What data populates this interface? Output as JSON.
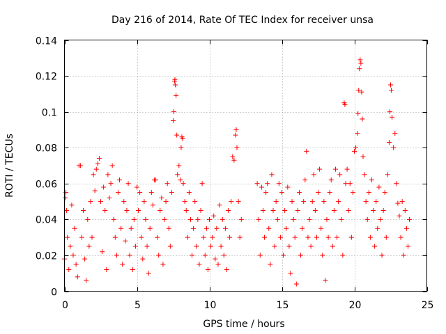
{
  "chart_data": {
    "type": "scatter",
    "title": "Day 216 of 2014, Rate Of TEC Index for receiver unsa",
    "xlabel": "GPS time / hours",
    "ylabel": "ROTI / TECUs",
    "xlim": [
      0,
      25
    ],
    "ylim": [
      0,
      0.14
    ],
    "xticks": [
      0,
      5,
      10,
      15,
      20,
      25
    ],
    "xtick_labels": [
      "0",
      "5",
      "10",
      "15",
      "20",
      "25"
    ],
    "yticks": [
      0,
      0.02,
      0.04,
      0.06,
      0.08,
      0.1,
      0.12,
      0.14
    ],
    "ytick_labels": [
      "0",
      "0.02",
      "0.04",
      "0.06",
      "0.08",
      "0.1",
      "0.12",
      "0.14"
    ],
    "grid": true,
    "marker": "+",
    "color": "#ff0000",
    "series": [
      {
        "name": "ROTI",
        "points": [
          [
            0.0,
            0.018
          ],
          [
            0.05,
            0.052
          ],
          [
            0.1,
            0.055
          ],
          [
            0.15,
            0.045
          ],
          [
            0.2,
            0.03
          ],
          [
            0.3,
            0.012
          ],
          [
            0.4,
            0.025
          ],
          [
            0.5,
            0.048
          ],
          [
            0.6,
            0.02
          ],
          [
            0.7,
            0.035
          ],
          [
            0.8,
            0.015
          ],
          [
            0.9,
            0.008
          ],
          [
            1.0,
            0.07
          ],
          [
            1.1,
            0.07
          ],
          [
            1.2,
            0.03
          ],
          [
            1.3,
            0.045
          ],
          [
            1.4,
            0.018
          ],
          [
            1.5,
            0.006
          ],
          [
            1.6,
            0.04
          ],
          [
            1.7,
            0.025
          ],
          [
            1.8,
            0.05
          ],
          [
            1.9,
            0.03
          ],
          [
            2.0,
            0.065
          ],
          [
            2.1,
            0.056
          ],
          [
            2.2,
            0.068
          ],
          [
            2.3,
            0.071
          ],
          [
            2.4,
            0.074
          ],
          [
            2.5,
            0.05
          ],
          [
            2.6,
            0.022
          ],
          [
            2.7,
            0.058
          ],
          [
            2.8,
            0.045
          ],
          [
            2.9,
            0.012
          ],
          [
            3.0,
            0.065
          ],
          [
            3.1,
            0.052
          ],
          [
            3.2,
            0.06
          ],
          [
            3.3,
            0.07
          ],
          [
            3.4,
            0.04
          ],
          [
            3.5,
            0.03
          ],
          [
            3.6,
            0.02
          ],
          [
            3.7,
            0.055
          ],
          [
            3.8,
            0.062
          ],
          [
            3.9,
            0.035
          ],
          [
            4.0,
            0.015
          ],
          [
            4.1,
            0.05
          ],
          [
            4.2,
            0.028
          ],
          [
            4.3,
            0.045
          ],
          [
            4.4,
            0.06
          ],
          [
            4.5,
            0.02
          ],
          [
            4.6,
            0.035
          ],
          [
            4.7,
            0.012
          ],
          [
            4.8,
            0.04
          ],
          [
            4.9,
            0.025
          ],
          [
            5.0,
            0.058
          ],
          [
            5.1,
            0.045
          ],
          [
            5.2,
            0.055
          ],
          [
            5.3,
            0.03
          ],
          [
            5.4,
            0.018
          ],
          [
            5.5,
            0.05
          ],
          [
            5.6,
            0.04
          ],
          [
            5.7,
            0.025
          ],
          [
            5.8,
            0.01
          ],
          [
            5.9,
            0.035
          ],
          [
            6.0,
            0.055
          ],
          [
            6.1,
            0.048
          ],
          [
            6.2,
            0.062
          ],
          [
            6.3,
            0.062
          ],
          [
            6.4,
            0.03
          ],
          [
            6.5,
            0.02
          ],
          [
            6.6,
            0.045
          ],
          [
            6.7,
            0.052
          ],
          [
            6.8,
            0.015
          ],
          [
            6.9,
            0.04
          ],
          [
            7.0,
            0.05
          ],
          [
            7.1,
            0.06
          ],
          [
            7.2,
            0.035
          ],
          [
            7.3,
            0.025
          ],
          [
            7.4,
            0.055
          ],
          [
            7.5,
            0.095
          ],
          [
            7.55,
            0.1
          ],
          [
            7.6,
            0.117
          ],
          [
            7.62,
            0.118
          ],
          [
            7.65,
            0.115
          ],
          [
            7.7,
            0.109
          ],
          [
            7.75,
            0.087
          ],
          [
            7.8,
            0.065
          ],
          [
            7.9,
            0.07
          ],
          [
            8.0,
            0.062
          ],
          [
            8.05,
            0.08
          ],
          [
            8.1,
            0.086
          ],
          [
            8.15,
            0.085
          ],
          [
            8.2,
            0.06
          ],
          [
            8.3,
            0.05
          ],
          [
            8.4,
            0.045
          ],
          [
            8.5,
            0.03
          ],
          [
            8.6,
            0.055
          ],
          [
            8.7,
            0.04
          ],
          [
            8.8,
            0.02
          ],
          [
            8.9,
            0.035
          ],
          [
            9.0,
            0.05
          ],
          [
            9.1,
            0.025
          ],
          [
            9.2,
            0.04
          ],
          [
            9.3,
            0.015
          ],
          [
            9.4,
            0.045
          ],
          [
            9.5,
            0.06
          ],
          [
            9.6,
            0.03
          ],
          [
            9.7,
            0.02
          ],
          [
            9.8,
            0.035
          ],
          [
            9.9,
            0.012
          ],
          [
            10.0,
            0.04
          ],
          [
            10.1,
            0.025
          ],
          [
            10.2,
            0.03
          ],
          [
            10.3,
            0.042
          ],
          [
            10.4,
            0.018
          ],
          [
            10.5,
            0.035
          ],
          [
            10.6,
            0.015
          ],
          [
            10.7,
            0.048
          ],
          [
            10.8,
            0.025
          ],
          [
            10.9,
            0.04
          ],
          [
            11.0,
            0.02
          ],
          [
            11.1,
            0.035
          ],
          [
            11.2,
            0.012
          ],
          [
            11.3,
            0.045
          ],
          [
            11.4,
            0.03
          ],
          [
            11.5,
            0.05
          ],
          [
            11.6,
            0.075
          ],
          [
            11.7,
            0.073
          ],
          [
            11.8,
            0.087
          ],
          [
            11.85,
            0.09
          ],
          [
            11.9,
            0.08
          ],
          [
            12.0,
            0.05
          ],
          [
            12.1,
            0.03
          ],
          [
            12.2,
            0.04
          ],
          [
            13.3,
            0.06
          ],
          [
            13.4,
            0.04
          ],
          [
            13.5,
            0.02
          ],
          [
            13.6,
            0.058
          ],
          [
            13.7,
            0.045
          ],
          [
            13.8,
            0.03
          ],
          [
            13.9,
            0.055
          ],
          [
            14.0,
            0.06
          ],
          [
            14.1,
            0.035
          ],
          [
            14.2,
            0.015
          ],
          [
            14.3,
            0.065
          ],
          [
            14.4,
            0.045
          ],
          [
            14.5,
            0.025
          ],
          [
            14.6,
            0.05
          ],
          [
            14.7,
            0.04
          ],
          [
            14.8,
            0.06
          ],
          [
            14.9,
            0.03
          ],
          [
            15.0,
            0.055
          ],
          [
            15.1,
            0.02
          ],
          [
            15.2,
            0.045
          ],
          [
            15.3,
            0.035
          ],
          [
            15.4,
            0.058
          ],
          [
            15.5,
            0.025
          ],
          [
            15.6,
            0.01
          ],
          [
            15.7,
            0.05
          ],
          [
            15.8,
            0.04
          ],
          [
            15.9,
            0.03
          ],
          [
            16.0,
            0.004
          ],
          [
            16.1,
            0.045
          ],
          [
            16.2,
            0.055
          ],
          [
            16.3,
            0.02
          ],
          [
            16.4,
            0.035
          ],
          [
            16.5,
            0.05
          ],
          [
            16.6,
            0.062
          ],
          [
            16.7,
            0.078
          ],
          [
            16.8,
            0.03
          ],
          [
            16.9,
            0.04
          ],
          [
            17.0,
            0.025
          ],
          [
            17.1,
            0.05
          ],
          [
            17.2,
            0.065
          ],
          [
            17.3,
            0.045
          ],
          [
            17.4,
            0.03
          ],
          [
            17.5,
            0.055
          ],
          [
            17.6,
            0.068
          ],
          [
            17.7,
            0.035
          ],
          [
            17.8,
            0.02
          ],
          [
            17.9,
            0.05
          ],
          [
            18.0,
            0.006
          ],
          [
            18.1,
            0.04
          ],
          [
            18.2,
            0.03
          ],
          [
            18.3,
            0.055
          ],
          [
            18.4,
            0.062
          ],
          [
            18.5,
            0.025
          ],
          [
            18.6,
            0.045
          ],
          [
            18.7,
            0.068
          ],
          [
            18.8,
            0.03
          ],
          [
            18.9,
            0.05
          ],
          [
            19.0,
            0.065
          ],
          [
            19.1,
            0.04
          ],
          [
            19.2,
            0.02
          ],
          [
            19.3,
            0.105
          ],
          [
            19.35,
            0.104
          ],
          [
            19.4,
            0.06
          ],
          [
            19.5,
            0.068
          ],
          [
            19.6,
            0.045
          ],
          [
            19.7,
            0.06
          ],
          [
            19.8,
            0.03
          ],
          [
            19.9,
            0.055
          ],
          [
            20.0,
            0.078
          ],
          [
            20.1,
            0.08
          ],
          [
            20.2,
            0.088
          ],
          [
            20.25,
            0.099
          ],
          [
            20.3,
            0.112
          ],
          [
            20.35,
            0.124
          ],
          [
            20.4,
            0.129
          ],
          [
            20.45,
            0.127
          ],
          [
            20.5,
            0.111
          ],
          [
            20.55,
            0.096
          ],
          [
            20.6,
            0.075
          ],
          [
            20.7,
            0.065
          ],
          [
            20.8,
            0.05
          ],
          [
            20.9,
            0.04
          ],
          [
            21.0,
            0.055
          ],
          [
            21.1,
            0.03
          ],
          [
            21.2,
            0.062
          ],
          [
            21.3,
            0.045
          ],
          [
            21.4,
            0.025
          ],
          [
            21.5,
            0.05
          ],
          [
            21.6,
            0.035
          ],
          [
            21.7,
            0.058
          ],
          [
            21.8,
            0.04
          ],
          [
            21.9,
            0.02
          ],
          [
            22.0,
            0.045
          ],
          [
            22.1,
            0.055
          ],
          [
            22.2,
            0.03
          ],
          [
            22.3,
            0.065
          ],
          [
            22.4,
            0.083
          ],
          [
            22.45,
            0.1
          ],
          [
            22.5,
            0.115
          ],
          [
            22.55,
            0.112
          ],
          [
            22.6,
            0.097
          ],
          [
            22.7,
            0.08
          ],
          [
            22.8,
            0.088
          ],
          [
            22.9,
            0.06
          ],
          [
            23.0,
            0.049
          ],
          [
            23.1,
            0.042
          ],
          [
            23.2,
            0.03
          ],
          [
            23.3,
            0.05
          ],
          [
            23.4,
            0.02
          ],
          [
            23.5,
            0.045
          ],
          [
            23.6,
            0.035
          ],
          [
            23.7,
            0.025
          ],
          [
            23.8,
            0.04
          ]
        ]
      }
    ]
  }
}
